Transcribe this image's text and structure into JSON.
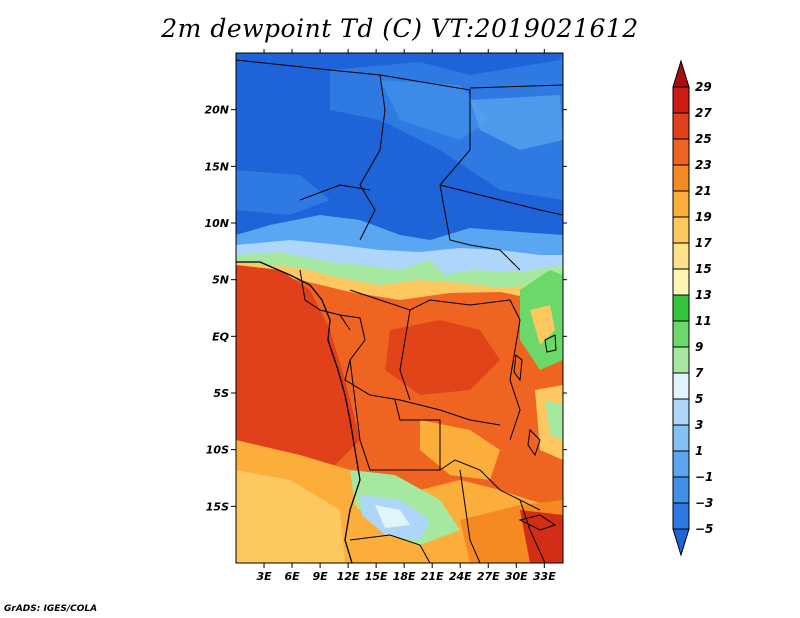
{
  "title": "2m dewpoint Td (C) VT:2019021612",
  "credit": "GrADS: IGES/COLA",
  "map": {
    "lon_range": [
      0,
      35
    ],
    "lat_range": [
      -20,
      25
    ],
    "lon_ticks": [
      3,
      6,
      9,
      12,
      15,
      18,
      21,
      24,
      27,
      30,
      33
    ],
    "lon_tick_labels": [
      "3E",
      "6E",
      "9E",
      "12E",
      "15E",
      "18E",
      "21E",
      "24E",
      "27E",
      "30E",
      "33E"
    ],
    "lat_ticks": [
      20,
      15,
      10,
      5,
      0,
      -5,
      -10,
      -15
    ],
    "lat_tick_labels": [
      "20N",
      "15N",
      "10N",
      "5N",
      "EQ",
      "5S",
      "10S",
      "15S"
    ]
  },
  "colorbar": {
    "levels": [
      -5,
      -3,
      -1,
      1,
      3,
      5,
      7,
      9,
      11,
      13,
      15,
      17,
      19,
      21,
      23,
      25,
      27,
      29
    ],
    "labels": [
      "29",
      "27",
      "25",
      "23",
      "21",
      "19",
      "17",
      "15",
      "13",
      "11",
      "9",
      "7",
      "5",
      "3",
      "1",
      "−1",
      "−3",
      "−5"
    ],
    "colors": [
      "#1f63d8",
      "#2f79e2",
      "#4090ea",
      "#5aa6f0",
      "#82c0f5",
      "#aed6fa",
      "#e1f4fb",
      "#a6e8a0",
      "#6dd86a",
      "#35c43a",
      "#fdf5b4",
      "#fde088",
      "#fdc860",
      "#fbae3a",
      "#f58a22",
      "#ee6420",
      "#e0401a",
      "#cc1c14",
      "#a80e0e"
    ]
  }
}
